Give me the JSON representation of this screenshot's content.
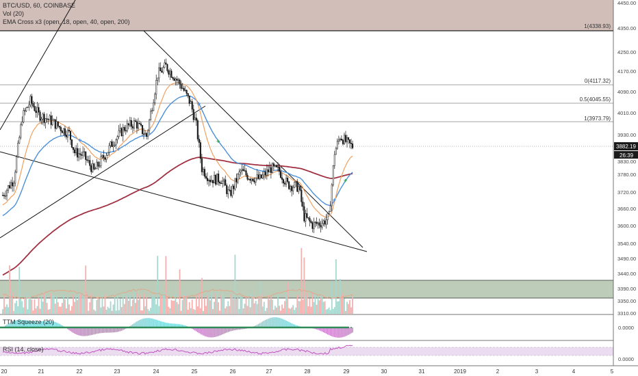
{
  "legend": {
    "main": "BTC/USD, 60, COINBASE",
    "vol": "Vol (20)",
    "ema": "EMA Cross x3 (open, 18, open, 40, open, 200)",
    "squeeze": "TTM Squeeze (20)",
    "rsi": "RSI (14, close)"
  },
  "price_axis": {
    "labels": [
      "4450.00",
      "4350.00",
      "4250.00",
      "4170.00",
      "4090.00",
      "4010.00",
      "3930.00",
      "3830.00",
      "3780.00",
      "3720.00",
      "3660.00",
      "3600.00",
      "3540.00",
      "3490.00",
      "3440.00",
      "3390.00",
      "3350.00",
      "3310.00"
    ],
    "last_price": "3882.19",
    "countdown": "26:39",
    "squeeze_label": "0.0000",
    "rsi_label": "0.0000"
  },
  "x_axis": {
    "labels": [
      "20",
      "21",
      "22",
      "23",
      "24",
      "25",
      "26",
      "27",
      "28",
      "29",
      "30",
      "31",
      "2019",
      "2",
      "3",
      "4",
      "5"
    ]
  },
  "fib_levels": [
    {
      "label": "1(4338.93)",
      "price": 4338.93
    },
    {
      "label": "0(4117.32)",
      "price": 4117.32
    },
    {
      "label": "0.5(4045.55)",
      "price": 4045.55
    },
    {
      "label": "1(3973.79)",
      "price": 3973.79
    }
  ],
  "colors": {
    "up": "#26a69a",
    "down": "#ef5350",
    "candle": "#1a1a1a",
    "ema18": "#f0a060",
    "ema40": "#4a8fd8",
    "ema200": "#a03040",
    "zone_top": "#b08f88",
    "zone_green": "#8aa886",
    "rsi": "#c050c0",
    "squeeze_up": "#4fc3c8",
    "squeeze_down": "#b050b0"
  },
  "chart_data": {
    "type": "candlestick",
    "symbol": "BTC/USD",
    "interval": "60",
    "exchange": "COINBASE",
    "ylim": [
      3300,
      4460
    ],
    "x": [
      "20",
      "21",
      "22",
      "23",
      "24",
      "25",
      "26",
      "27",
      "28",
      "29"
    ],
    "close_approx": [
      3740,
      4060,
      3840,
      3960,
      4180,
      4010,
      3820,
      3800,
      3600,
      3882
    ],
    "last_price": 3882.19
  }
}
